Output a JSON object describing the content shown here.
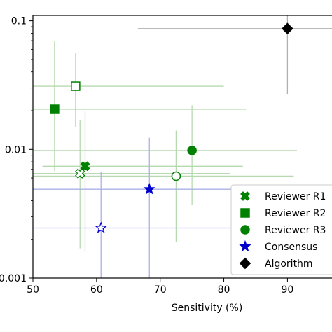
{
  "chart_data": {
    "type": "scatter",
    "xlabel": "Sensitivity (%)",
    "ylabel": "",
    "xlim": [
      50,
      97
    ],
    "ylim": [
      0.001,
      0.11
    ],
    "yscale": "log",
    "x_ticks": [
      50,
      60,
      70,
      80,
      90
    ],
    "x_tick_labels": [
      "50",
      "60",
      "70",
      "80",
      "90"
    ],
    "y_ticks": [
      0.001,
      0.01,
      0.1
    ],
    "y_tick_labels": [
      "0.001",
      "0.01",
      "0.1"
    ],
    "grid": false,
    "legend_position": "lower-right",
    "colors": {
      "reviewer": "#008000",
      "reviewer_errorbar": "#b7d9b0",
      "consensus": "#0000cc",
      "consensus_errorbar": "#aab0e6",
      "algorithm": "#000000",
      "algorithm_errorbar": "#b0b0b0"
    },
    "legend": [
      {
        "label": "Reviewer R1",
        "marker": "x",
        "color": "#008000"
      },
      {
        "label": "Reviewer R2",
        "marker": "square",
        "color": "#008000"
      },
      {
        "label": "Reviewer R3",
        "marker": "circle",
        "color": "#008000"
      },
      {
        "label": "Consensus",
        "marker": "star",
        "color": "#0000cc"
      },
      {
        "label": "Algorithm",
        "marker": "diamond",
        "color": "#000000"
      }
    ],
    "points": [
      {
        "series": "Reviewer R1",
        "marker": "x",
        "filled": true,
        "color": "#008000",
        "err_color": "#b7d9b0",
        "x": 58.2,
        "y": 0.0074,
        "xerr": [
          51.5,
          83
        ],
        "yerr": [
          0.0016,
          0.02
        ]
      },
      {
        "series": "Reviewer R1",
        "marker": "x",
        "filled": false,
        "color": "#008000",
        "err_color": "#b7d9b0",
        "x": 57.4,
        "y": 0.0065,
        "xerr": [
          50,
          81
        ],
        "yerr": [
          0.0017,
          0.017
        ]
      },
      {
        "series": "Reviewer R2",
        "marker": "square",
        "filled": true,
        "color": "#008000",
        "err_color": "#b7d9b0",
        "x": 53.4,
        "y": 0.0205,
        "xerr": [
          50,
          83.5
        ],
        "yerr": [
          0.0068,
          0.07
        ]
      },
      {
        "series": "Reviewer R2",
        "marker": "square",
        "filled": false,
        "color": "#008000",
        "err_color": "#b7d9b0",
        "x": 56.7,
        "y": 0.031,
        "xerr": [
          50,
          80
        ],
        "yerr": [
          0.015,
          0.056
        ]
      },
      {
        "series": "Reviewer R3",
        "marker": "circle",
        "filled": true,
        "color": "#008000",
        "err_color": "#b7d9b0",
        "x": 75,
        "y": 0.0098,
        "xerr": [
          50,
          91.5
        ],
        "yerr": [
          0.0037,
          0.022
        ]
      },
      {
        "series": "Reviewer R3",
        "marker": "circle",
        "filled": false,
        "color": "#008000",
        "err_color": "#b7d9b0",
        "x": 72.5,
        "y": 0.0062,
        "xerr": [
          50,
          91
        ],
        "yerr": [
          0.0019,
          0.014
        ]
      },
      {
        "series": "Consensus",
        "marker": "star",
        "filled": true,
        "color": "#0000cc",
        "err_color": "#aab0e6",
        "x": 68.3,
        "y": 0.0049,
        "xerr": [
          50,
          89.5
        ],
        "yerr": [
          0.00098,
          0.0123
        ]
      },
      {
        "series": "Consensus",
        "marker": "star",
        "filled": false,
        "color": "#0000cc",
        "err_color": "#aab0e6",
        "x": 60.7,
        "y": 0.00245,
        "xerr": [
          50,
          89
        ],
        "yerr": [
          0.00098,
          0.0067
        ]
      },
      {
        "series": "Algorithm",
        "marker": "diamond",
        "filled": true,
        "color": "#000000",
        "err_color": "#b0b0b0",
        "x": 90,
        "y": 0.087,
        "xerr": [
          66.5,
          97
        ],
        "yerr": [
          0.027,
          0.11
        ]
      }
    ]
  }
}
